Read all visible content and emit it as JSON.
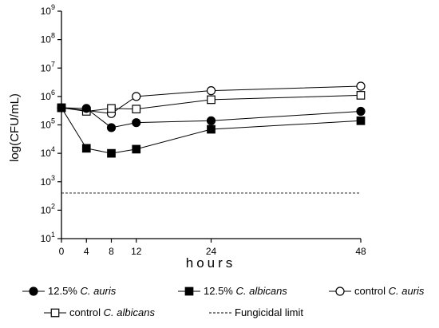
{
  "chart_data": {
    "type": "line",
    "xlabel": "hours",
    "ylabel": "log(CFU/mL)",
    "x_ticks": [
      0,
      4,
      8,
      12,
      24,
      48
    ],
    "y_ticks": [
      {
        "exp": 1,
        "base": "10",
        "pow": "1"
      },
      {
        "exp": 2,
        "base": "10",
        "pow": "2"
      },
      {
        "exp": 3,
        "base": "10",
        "pow": "3"
      },
      {
        "exp": 4,
        "base": "10",
        "pow": "4"
      },
      {
        "exp": 5,
        "base": "10",
        "pow": "5"
      },
      {
        "exp": 6,
        "base": "10",
        "pow": "6"
      },
      {
        "exp": 7,
        "base": "10",
        "pow": "7"
      },
      {
        "exp": 8,
        "base": "10",
        "pow": "8"
      },
      {
        "exp": 9,
        "base": "10",
        "pow": "9"
      }
    ],
    "x_range": [
      0,
      48
    ],
    "y_log_range": [
      1,
      9
    ],
    "y_scale": "log",
    "grid": false,
    "legend_position": "bottom",
    "x": [
      0,
      4,
      8,
      12,
      24,
      48
    ],
    "series": [
      {
        "name_prefix": "12.5% ",
        "name_italic": "C. auris",
        "marker": "circle-filled",
        "values": [
          400000,
          380000,
          80000,
          120000,
          140000,
          300000
        ]
      },
      {
        "name_prefix": "12.5% ",
        "name_italic": "C. albicans",
        "marker": "square-filled",
        "values": [
          400000,
          15000,
          10000,
          14000,
          70000,
          140000
        ]
      },
      {
        "name_prefix": "control ",
        "name_italic": "C. auris",
        "marker": "circle-open",
        "values": [
          400000,
          320000,
          250000,
          1000000,
          1600000,
          2300000
        ]
      },
      {
        "name_prefix": "control ",
        "name_italic": "C. albicans",
        "marker": "square-open",
        "values": [
          400000,
          300000,
          380000,
          360000,
          770000,
          1100000
        ]
      }
    ],
    "fungicidal_limit": {
      "name": "Fungicidal limit",
      "value": 400,
      "style": "dashed"
    },
    "colors": {
      "line": "#000000",
      "background": "#ffffff"
    }
  }
}
